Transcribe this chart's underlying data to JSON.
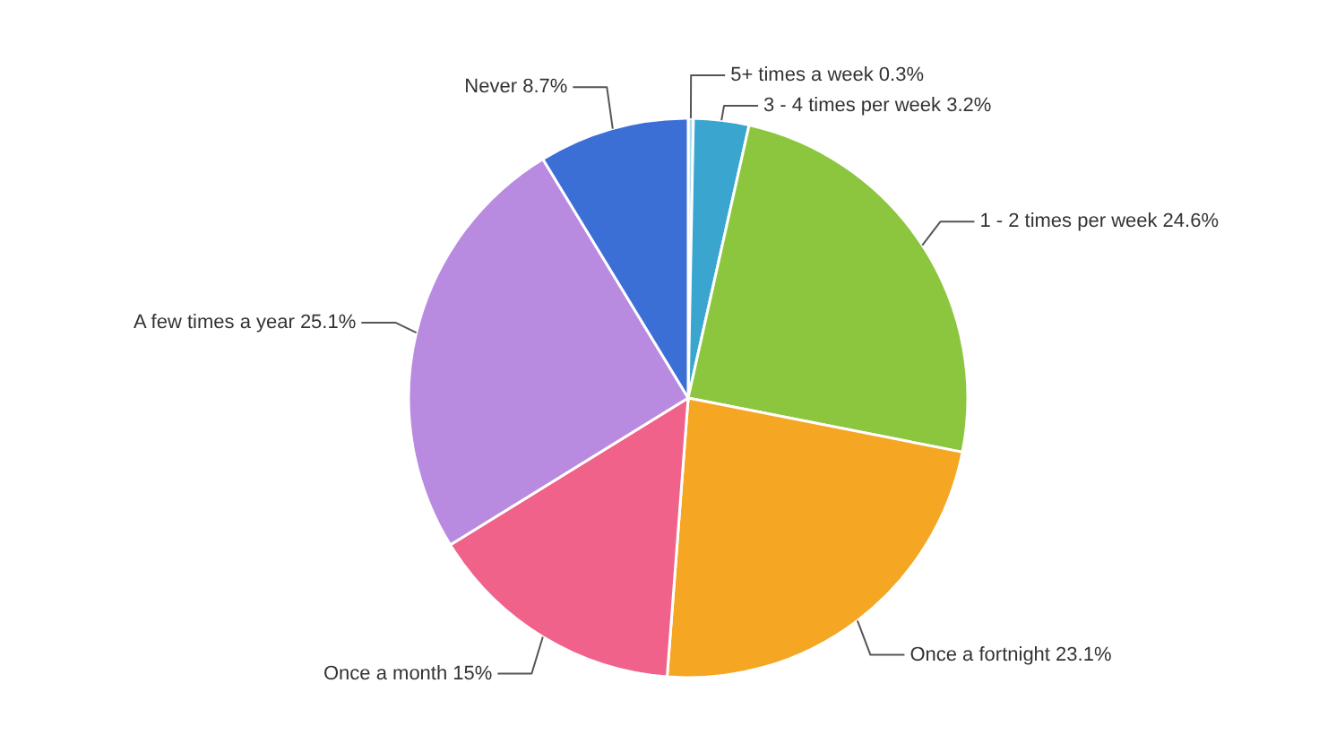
{
  "chart_data": {
    "type": "pie",
    "categories": [
      "5+ times a week",
      "3 - 4 times per week",
      "1 - 2 times per week",
      "Once a fortnight",
      "Once a month",
      "A few times a year",
      "Never"
    ],
    "values": [
      0.3,
      3.2,
      24.6,
      23.1,
      15,
      25.1,
      8.7
    ],
    "colors": [
      "#a9dcef",
      "#3aa6d0",
      "#8cc63e",
      "#f5a623",
      "#f0628a",
      "#b98be0",
      "#3b6fd6"
    ],
    "value_labels": [
      "0.3%",
      "3.2%",
      "24.6%",
      "23.1%",
      "15%",
      "25.1%",
      "8.7%"
    ]
  }
}
